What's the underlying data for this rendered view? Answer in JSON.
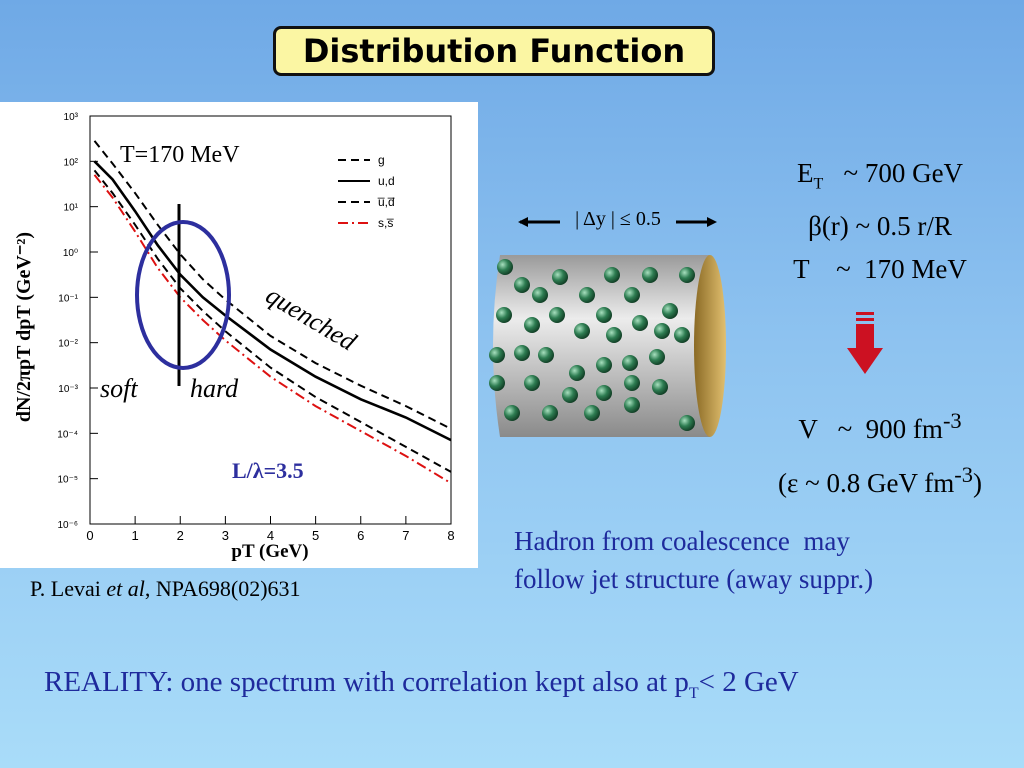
{
  "title": "Distribution Function",
  "plot": {
    "y_axis_label": "dN/2πpT dpT (GeV⁻²)",
    "x_axis_label": "pT (GeV)",
    "temperature_label": "T=170 MeV",
    "soft_label": "soft",
    "hard_label": "hard",
    "quenched_label": "quenched",
    "ratio_label": "L/λ=3.5",
    "y_ticks": [
      "10³",
      "10²",
      "10¹",
      "10⁰",
      "10⁻¹",
      "10⁻²",
      "10⁻³",
      "10⁻⁴",
      "10⁻⁵",
      "10⁻⁶"
    ],
    "x_ticks": [
      "0",
      "1",
      "2",
      "3",
      "4",
      "5",
      "6",
      "7",
      "8"
    ],
    "legend": [
      "g",
      "u,d",
      "u̅,d̅",
      "s,s̅"
    ]
  },
  "citation": {
    "author": "P. Levai ",
    "etal": "et al",
    "ref": ",  NPA698(02)631"
  },
  "rapidity_label": "| Δy | ≤ 0.5",
  "params": {
    "et_symbol": "E",
    "et_sub": "T",
    "et_value": "~ 700 GeV",
    "beta": "β(r) ~ 0.5 r/R",
    "temperature": "T    ~  170 MeV"
  },
  "volume": {
    "v_text": "V   ~  900 fm",
    "v_exp": "-3",
    "eps_text": "(ε ~ 0.8 GeV fm",
    "eps_exp": "-3",
    "eps_close": ")"
  },
  "hadron_note": {
    "line1": "Hadron from coalescence  may",
    "line2": "follow jet structure (away suppr.)"
  },
  "reality": {
    "prefix": "REALITY: one spectrum with correlation kept also at p",
    "sub": "T",
    "suffix": "< 2 GeV"
  },
  "chart_data": {
    "type": "line",
    "title": "",
    "xlabel": "pT (GeV)",
    "ylabel": "dN/2πpT dpT (GeV⁻²)",
    "xlim": [
      0,
      8
    ],
    "ylim_log10": [
      -6,
      3
    ],
    "y_scale": "log",
    "legend_position": "top-right",
    "series": [
      {
        "name": "g",
        "style": "dashed",
        "color": "#000000",
        "x": [
          0.1,
          0.5,
          1,
          1.5,
          2,
          2.5,
          3,
          4,
          5,
          6,
          7,
          8
        ],
        "log10_y": [
          2.45,
          1.95,
          1.3,
          0.6,
          -0.05,
          -0.6,
          -1.05,
          -1.85,
          -2.45,
          -2.95,
          -3.4,
          -3.9
        ]
      },
      {
        "name": "u,d",
        "style": "solid",
        "color": "#000000",
        "x": [
          0.1,
          0.5,
          1,
          1.5,
          2,
          2.5,
          3,
          4,
          5,
          6,
          7,
          8
        ],
        "log10_y": [
          2.0,
          1.6,
          0.9,
          0.15,
          -0.5,
          -1.0,
          -1.4,
          -2.15,
          -2.75,
          -3.25,
          -3.65,
          -4.15
        ]
      },
      {
        "name": "u̅,d̅",
        "style": "dashed",
        "color": "#000000",
        "x": [
          0.1,
          0.5,
          1,
          1.5,
          2,
          2.5,
          3,
          4,
          5,
          6,
          7,
          8
        ],
        "log10_y": [
          1.8,
          1.3,
          0.6,
          -0.15,
          -0.8,
          -1.3,
          -1.75,
          -2.55,
          -3.2,
          -3.75,
          -4.3,
          -4.85
        ]
      },
      {
        "name": "s,s̅",
        "style": "dash-dot",
        "color": "#dd1111",
        "x": [
          0.1,
          0.5,
          1,
          1.5,
          2,
          2.5,
          3,
          4,
          5,
          6,
          7,
          8
        ],
        "log10_y": [
          1.7,
          1.2,
          0.45,
          -0.35,
          -1.0,
          -1.5,
          -1.95,
          -2.75,
          -3.4,
          -3.95,
          -4.5,
          -5.1
        ]
      }
    ]
  },
  "colors": {
    "title_bg": "#fbf6a3",
    "note_text": "#1e2a9c",
    "ellipse": "#2d2f9e",
    "arrow": "#cc1122",
    "cylinder": "#c8c8c8",
    "cylinder_end": "#c6a24c",
    "particle": "#2e7d52"
  }
}
